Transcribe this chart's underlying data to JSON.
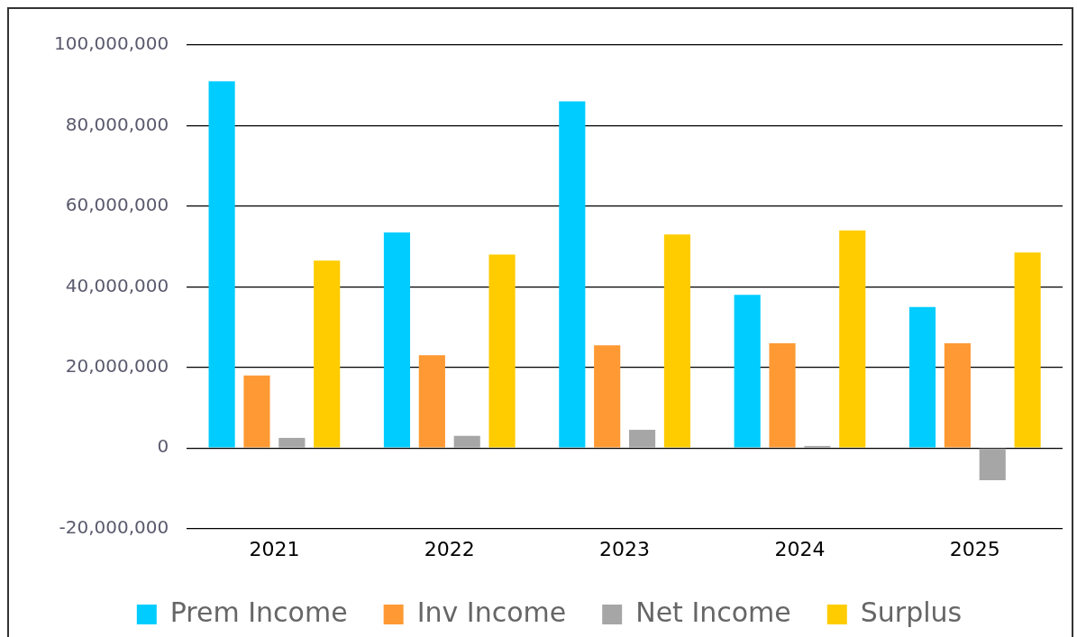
{
  "chart_data": {
    "type": "bar",
    "categories": [
      "2021",
      "2022",
      "2023",
      "2024",
      "2025"
    ],
    "series": [
      {
        "name": "Prem Income",
        "color": "#00ccff",
        "values": [
          91000000,
          53500000,
          86000000,
          38000000,
          35000000
        ]
      },
      {
        "name": "Inv Income",
        "color": "#ff9933",
        "values": [
          18000000,
          23000000,
          25500000,
          26000000,
          26000000
        ]
      },
      {
        "name": "Net Income",
        "color": "#a6a6a6",
        "values": [
          2500000,
          3000000,
          4500000,
          500000,
          -8000000
        ]
      },
      {
        "name": "Surplus",
        "color": "#ffcc00",
        "values": [
          46500000,
          48000000,
          53000000,
          54000000,
          48500000
        ]
      }
    ],
    "ylim": [
      -20000000,
      100000000
    ],
    "yticks": [
      {
        "value": -20000000,
        "label": "-20,000,000"
      },
      {
        "value": 0,
        "label": "0"
      },
      {
        "value": 20000000,
        "label": "20,000,000"
      },
      {
        "value": 40000000,
        "label": "40,000,000"
      },
      {
        "value": 60000000,
        "label": "60,000,000"
      },
      {
        "value": 80000000,
        "label": "80,000,000"
      },
      {
        "value": 100000000,
        "label": "100,000,000"
      }
    ],
    "grid": "y",
    "legend": "bottom"
  }
}
